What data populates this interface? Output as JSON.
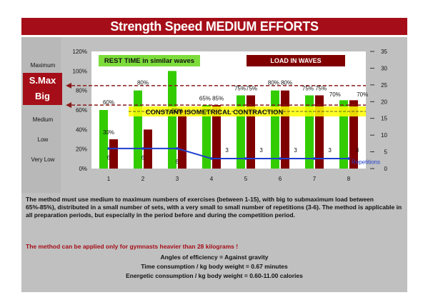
{
  "title": "Strength Speed MEDIUM EFFORTS",
  "levels": [
    "Maximum",
    "S.Max",
    "Big",
    "Medium",
    "Low",
    "Very Low"
  ],
  "legend": {
    "rest_time": "REST TIME in similar waves",
    "load": "LOAD IN WAVES",
    "contraction": "CONSTANT ISOMETRICAL CONTRACTION",
    "repetitions": "Repetitions"
  },
  "colors": {
    "title_bg": "#a50e18",
    "rest_bar": "#33cc00",
    "load_bar": "#800000",
    "repetition_line": "#1f3fd0",
    "contraction_band": "#ffff00",
    "dashed_line": "#8b1a1a"
  },
  "chart_data": {
    "type": "bar",
    "categories": [
      "1",
      "2",
      "3",
      "4",
      "5",
      "6",
      "7",
      "8"
    ],
    "left_ticks": [
      "120%",
      "100%",
      "80%",
      "60%",
      "40%",
      "20%",
      "0%"
    ],
    "right_ticks": [
      "35",
      "30",
      "25",
      "20",
      "15",
      "10",
      "5",
      "0"
    ],
    "ylim_left": [
      0,
      120
    ],
    "ylim_right": [
      0,
      35
    ],
    "series": [
      {
        "name": "REST TIME in similar waves",
        "axis": "left",
        "values": [
          60,
          80,
          100,
          65,
          75,
          80,
          75,
          70
        ]
      },
      {
        "name": "LOAD IN WAVES",
        "axis": "left",
        "values": [
          30,
          40,
          60,
          65,
          75,
          80,
          75,
          70
        ]
      },
      {
        "name": "Repetitions",
        "axis": "right",
        "type": "line",
        "values": [
          6,
          6,
          6,
          3,
          3,
          3,
          3,
          3
        ]
      }
    ],
    "labels": [
      {
        "text": "60%",
        "cat": 1,
        "v": 66
      },
      {
        "text": "30%",
        "cat": 1,
        "v": 35
      },
      {
        "text": "6",
        "cat": 1,
        "v": 9
      },
      {
        "text": "80%",
        "cat": 2,
        "v": 86
      },
      {
        "text": "6",
        "cat": 2,
        "v": 9
      },
      {
        "text": "60%",
        "cat": 3,
        "v": 57
      },
      {
        "text": "6",
        "cat": 3,
        "v": 5
      },
      {
        "text": "65% 85%",
        "cat": 4,
        "v": 70
      },
      {
        "text": "3",
        "cat": 4.45,
        "v": 17
      },
      {
        "text": "75%75%",
        "cat": 5,
        "v": 80
      },
      {
        "text": "3",
        "cat": 5.45,
        "v": 17
      },
      {
        "text": "80% 80%",
        "cat": 6,
        "v": 86
      },
      {
        "text": "3",
        "cat": 6.45,
        "v": 17
      },
      {
        "text": "75% 75%",
        "cat": 7,
        "v": 80
      },
      {
        "text": "3",
        "cat": 7.45,
        "v": 17
      },
      {
        "text": "70%",
        "cat": 7.6,
        "v": 74
      },
      {
        "text": "70%",
        "cat": 8.4,
        "v": 74
      },
      {
        "text": "3",
        "cat": 8.25,
        "v": 17
      }
    ],
    "dashed_lines": [
      85,
      65
    ]
  },
  "description": "The method must use medium to maximum numbers of exercises (between 1-15), with big to submaximum load between 65%-85%), distributed in a small number of sets, with a very small to small number of repetitions (3-6). The method is applicable in all preparation periods, but especially in the period before and during the competition period.",
  "warning": "The method can be applied only for gymnasts heavier than 28 kilograms !",
  "stats": [
    "Angles of efficiency = Against gravity",
    "Time consumption /  kg body weight =  0.67 minutes",
    "Energetic consumption /  kg body weight =  0.60-11.00 calories"
  ]
}
